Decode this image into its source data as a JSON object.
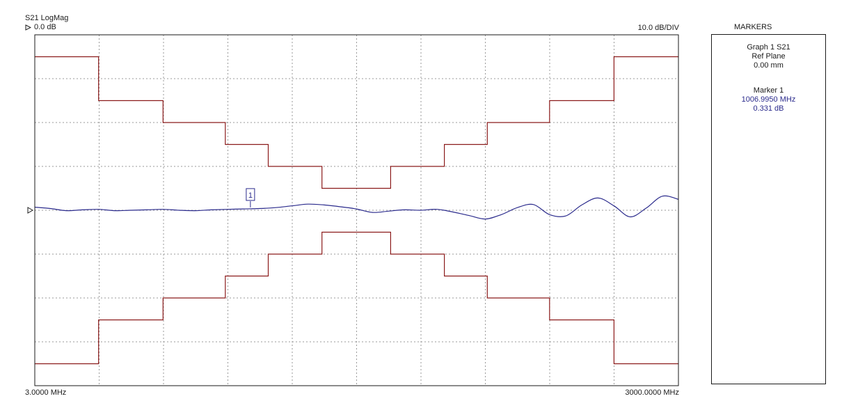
{
  "header": {
    "trace_label": "S21 LogMag",
    "ref_value": "0.0 dB",
    "scale": "10.0 dB/DIV"
  },
  "x_axis": {
    "start_label": "3.0000 MHz",
    "stop_label": "3000.0000 MHz"
  },
  "markers_panel": {
    "title": "MARKERS",
    "graph_line": "Graph 1 S21",
    "ref_plane_label": "Ref Plane",
    "ref_plane_value": "0.00 mm",
    "marker_name": "Marker 1",
    "marker_freq": "1006.9950 MHz",
    "marker_value": "0.331 dB",
    "marker_tag": "1"
  },
  "colors": {
    "trace": "#2a2a8c",
    "limit": "#8b1a1a",
    "grid": "#9a9a9a",
    "frame": "#1a1a1a"
  },
  "chart_data": {
    "type": "line",
    "x_unit": "MHz",
    "y_unit": "dB",
    "xlim": [
      3,
      3000
    ],
    "ylim": [
      -40,
      40
    ],
    "x_divisions": 10,
    "y_divisions": 8,
    "reference_level": 0,
    "grid": true,
    "series": [
      {
        "x": [
          3,
          75,
          150,
          225,
          300,
          375,
          450,
          525,
          600,
          675,
          750,
          825,
          900,
          975,
          1050,
          1125,
          1200,
          1275,
          1350,
          1425,
          1500,
          1575,
          1650,
          1725,
          1800,
          1875,
          1950,
          2025,
          2100,
          2175,
          2250,
          2325,
          2400,
          2475,
          2550,
          2625,
          2700,
          2775,
          2850,
          2925,
          3000
        ],
        "y": [
          0.7,
          0.4,
          -0.1,
          0.1,
          0.2,
          -0.1,
          0.0,
          0.1,
          0.2,
          0.0,
          -0.1,
          0.1,
          0.2,
          0.3,
          0.4,
          0.6,
          1.0,
          1.4,
          1.2,
          0.8,
          0.3,
          -0.5,
          -0.2,
          0.1,
          0.0,
          0.2,
          -0.4,
          -1.2,
          -2.0,
          -1.0,
          0.6,
          1.3,
          -1.0,
          -1.3,
          1.2,
          2.8,
          1.0,
          -1.5,
          0.5,
          3.2,
          2.5
        ]
      }
    ],
    "limit_lines": [
      {
        "x": [
          3,
          300,
          300,
          600,
          600,
          890,
          890,
          1090,
          1090,
          1340,
          1340,
          1660,
          1660,
          1910,
          1910,
          2110,
          2110,
          2400,
          2400,
          2700,
          2700,
          3000
        ],
        "y": [
          35,
          35,
          25,
          25,
          20,
          20,
          15,
          15,
          10,
          10,
          5,
          5,
          10,
          10,
          15,
          15,
          20,
          20,
          25,
          25,
          35,
          35
        ]
      },
      {
        "x": [
          3,
          300,
          300,
          600,
          600,
          890,
          890,
          1090,
          1090,
          1340,
          1340,
          1660,
          1660,
          1910,
          1910,
          2110,
          2110,
          2400,
          2400,
          2700,
          2700,
          3000
        ],
        "y": [
          -35,
          -35,
          -25,
          -25,
          -20,
          -20,
          -15,
          -15,
          -10,
          -10,
          -5,
          -5,
          -10,
          -10,
          -15,
          -15,
          -20,
          -20,
          -25,
          -25,
          -35,
          -35
        ]
      }
    ],
    "markers": [
      {
        "name": "1",
        "x": 1006.995,
        "y": 0.331
      }
    ]
  }
}
